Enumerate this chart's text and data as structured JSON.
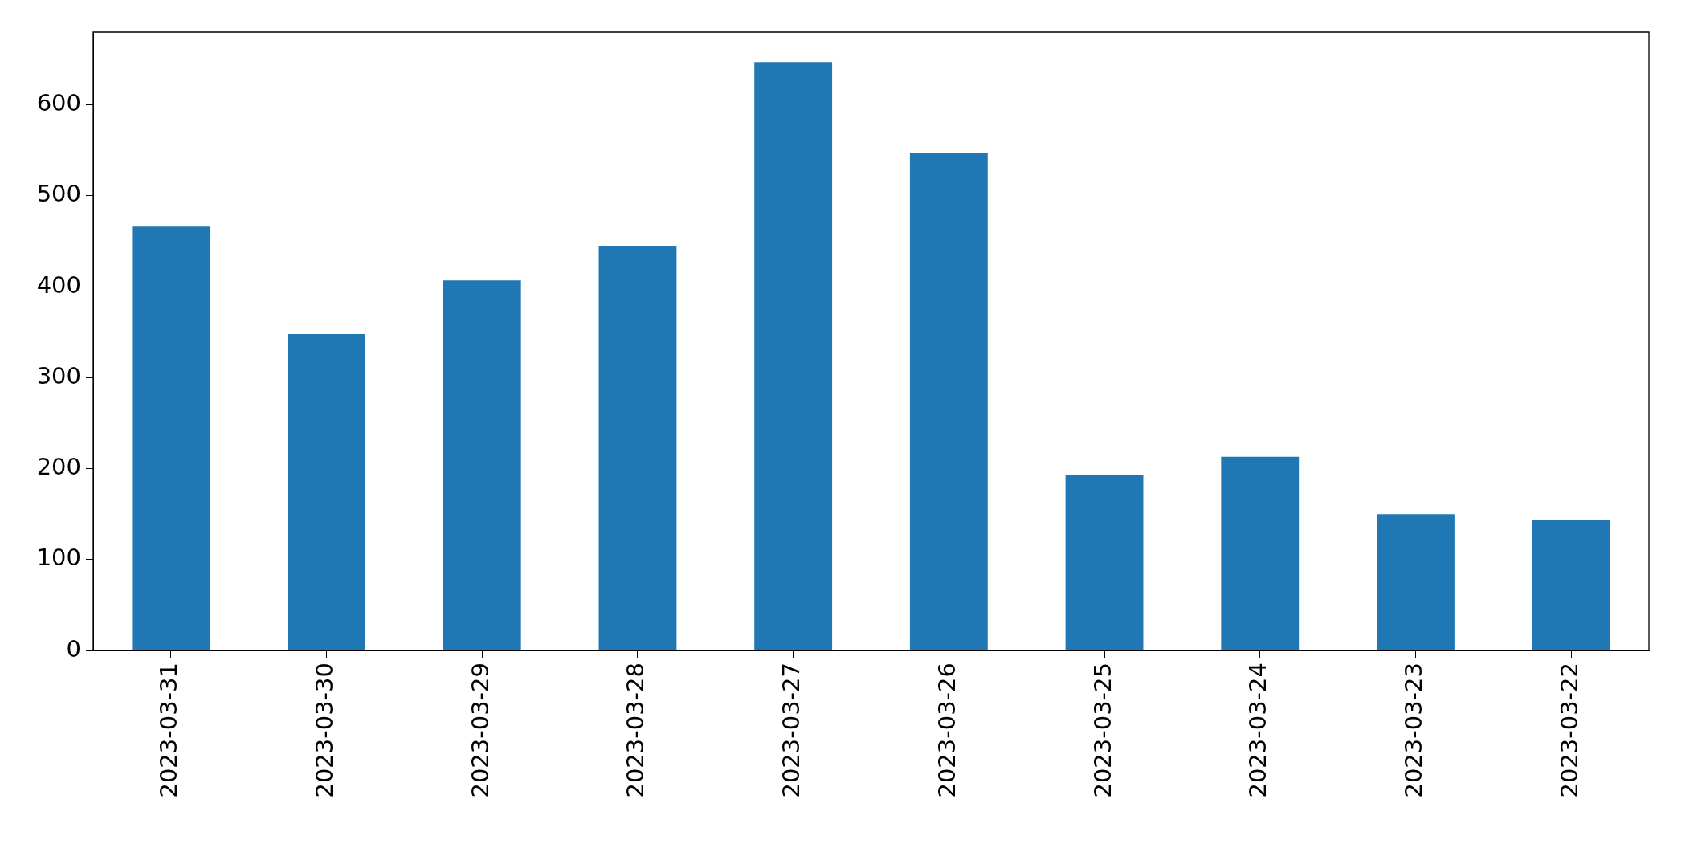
{
  "chart_data": {
    "type": "bar",
    "categories": [
      "2023-03-31",
      "2023-03-30",
      "2023-03-29",
      "2023-03-28",
      "2023-03-27",
      "2023-03-26",
      "2023-03-25",
      "2023-03-24",
      "2023-03-23",
      "2023-03-22"
    ],
    "values": [
      466,
      348,
      407,
      445,
      647,
      547,
      193,
      213,
      150,
      143
    ],
    "color": "#1f77b4",
    "ylim": [
      0,
      680
    ],
    "yticks": [
      0,
      100,
      200,
      300,
      400,
      500,
      600
    ]
  }
}
